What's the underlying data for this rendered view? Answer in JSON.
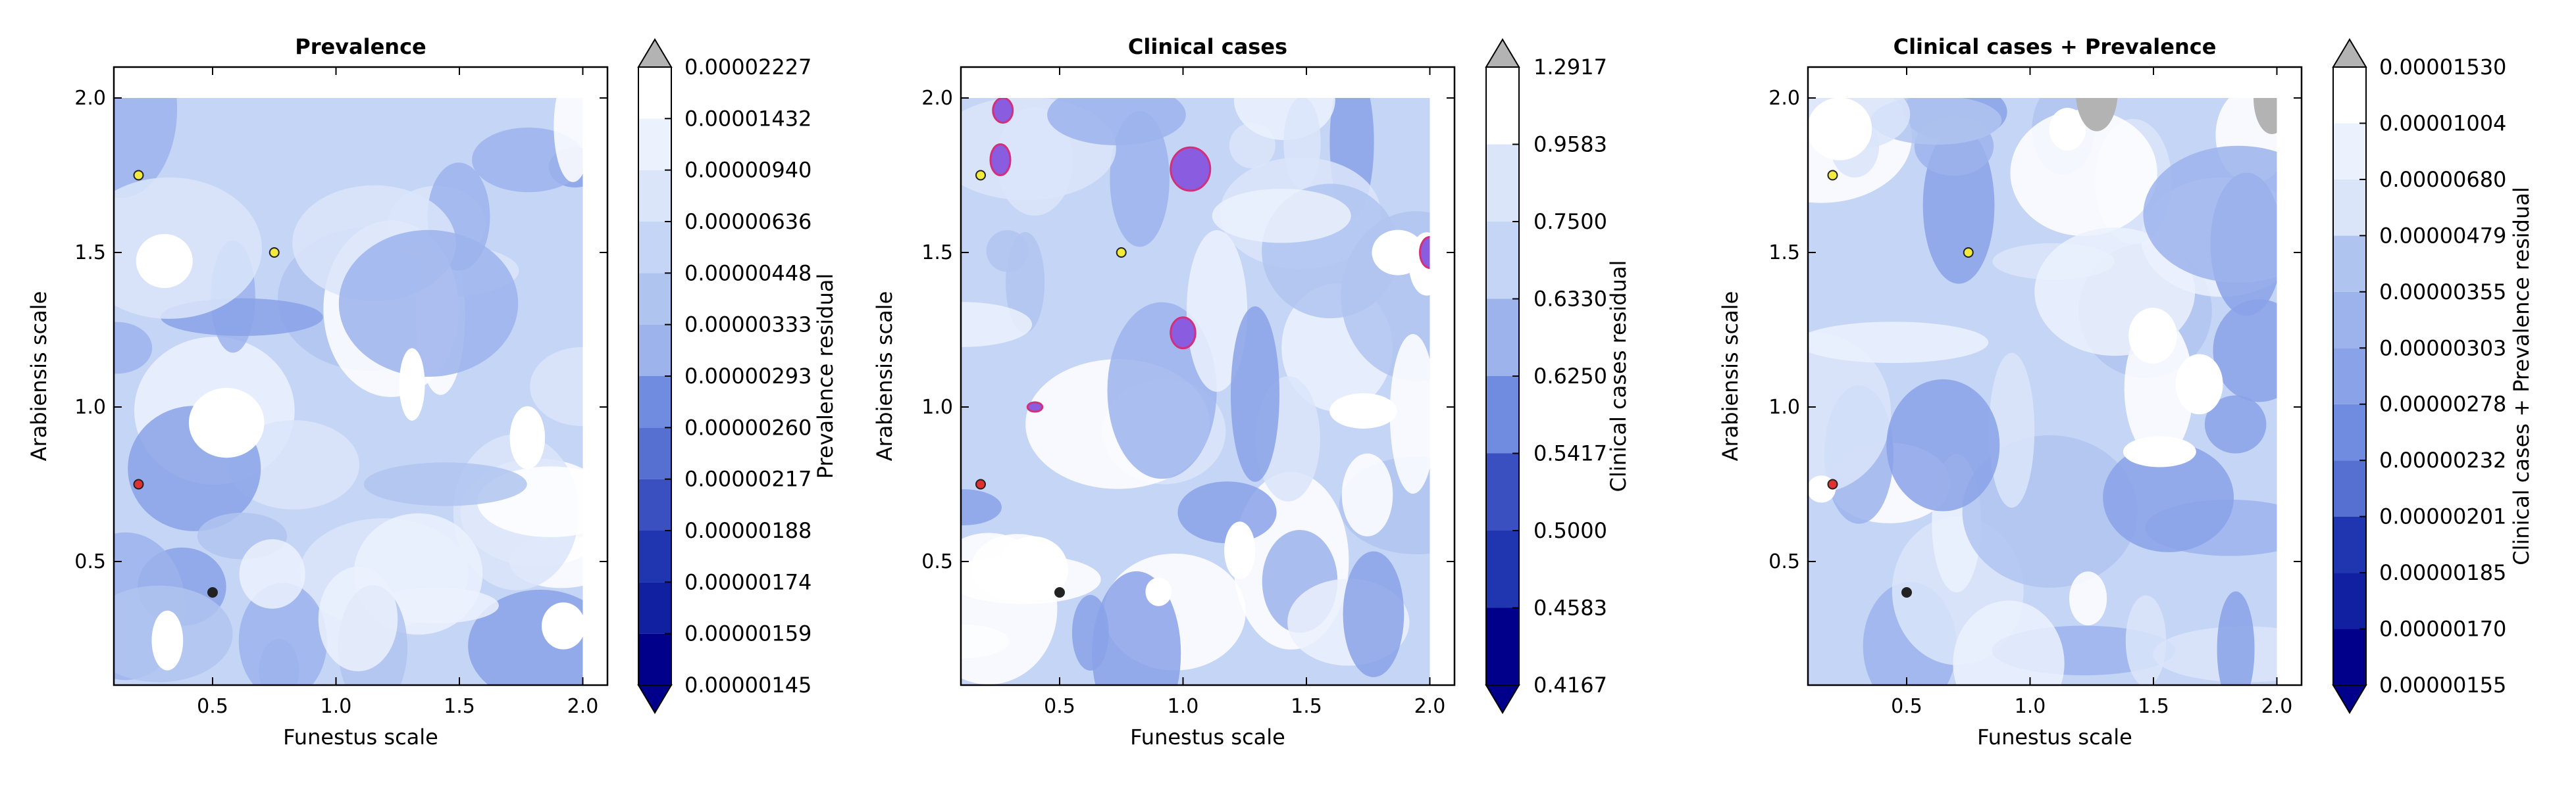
{
  "colors": {
    "background": "#ffffff",
    "over": "#b3b3b3",
    "under": "#00008b",
    "levels": [
      "#00008b",
      "#1020a0",
      "#2035b0",
      "#3a4fc0",
      "#5570d0",
      "#6f8ce0",
      "#8aa2e8",
      "#9cb3ec",
      "#b0c4f0",
      "#c5d5f5",
      "#dbe5fa",
      "#ebf1fd",
      "#ffffff"
    ],
    "point_yellow": "#f2ea3c",
    "point_red": "#e03030",
    "point_black": "#222222",
    "highlight_fill": "#8a5ce0",
    "highlight_edge": "#d2307a"
  },
  "chart_data": [
    {
      "type": "contour",
      "title": "Prevalence",
      "xlabel": "Funestus scale",
      "ylabel": "Arabiensis scale",
      "xlim": [
        0.1,
        2.1
      ],
      "ylim": [
        0.1,
        2.1
      ],
      "xticks": [
        "0.5",
        "1.0",
        "1.5",
        "2.0"
      ],
      "yticks": [
        "0.5",
        "1.0",
        "1.5",
        "2.0"
      ],
      "colorbar_label": "Prevalence residual",
      "colorbar_ticks": [
        "0.00000145",
        "0.00000159",
        "0.00000174",
        "0.00000188",
        "0.00000217",
        "0.00000260",
        "0.00000293",
        "0.00000333",
        "0.00000448",
        "0.00000636",
        "0.00000940",
        "0.00001432",
        "0.00002227"
      ],
      "points": [
        {
          "x": 0.2,
          "y": 1.75,
          "color": "yellow"
        },
        {
          "x": 0.75,
          "y": 1.5,
          "color": "yellow"
        },
        {
          "x": 0.2,
          "y": 0.75,
          "color": "red"
        },
        {
          "x": 0.5,
          "y": 0.4,
          "color": "black"
        }
      ],
      "highlights": [],
      "seed": 1
    },
    {
      "type": "contour",
      "title": "Clinical cases",
      "xlabel": "Funestus scale",
      "ylabel": "Arabiensis scale",
      "xlim": [
        0.1,
        2.1
      ],
      "ylim": [
        0.1,
        2.1
      ],
      "xticks": [
        "0.5",
        "1.0",
        "1.5",
        "2.0"
      ],
      "yticks": [
        "0.5",
        "1.0",
        "1.5",
        "2.0"
      ],
      "colorbar_label": "Clinical cases residual",
      "colorbar_ticks": [
        "0.4167",
        "0.4583",
        "0.5000",
        "0.5417",
        "0.6250",
        "0.6330",
        "0.7500",
        "0.9583",
        "1.2917"
      ],
      "points": [
        {
          "x": 0.18,
          "y": 1.75,
          "color": "yellow"
        },
        {
          "x": 0.75,
          "y": 1.5,
          "color": "yellow"
        },
        {
          "x": 0.18,
          "y": 0.75,
          "color": "red"
        },
        {
          "x": 0.5,
          "y": 0.4,
          "color": "black"
        }
      ],
      "highlights": [
        {
          "x": 1.03,
          "y": 1.77,
          "rx": 0.08,
          "ry": 0.07
        },
        {
          "x": 1.0,
          "y": 1.24,
          "rx": 0.05,
          "ry": 0.05
        },
        {
          "x": 0.26,
          "y": 1.8,
          "rx": 0.04,
          "ry": 0.05
        },
        {
          "x": 0.27,
          "y": 1.96,
          "rx": 0.04,
          "ry": 0.04
        },
        {
          "x": 0.4,
          "y": 1.0,
          "rx": 0.03,
          "ry": 0.015
        },
        {
          "x": 2.0,
          "y": 1.5,
          "rx": 0.04,
          "ry": 0.05
        }
      ],
      "seed": 2
    },
    {
      "type": "contour",
      "title": "Clinical cases + Prevalence",
      "xlabel": "Funestus scale",
      "ylabel": "Arabiensis scale",
      "xlim": [
        0.1,
        2.1
      ],
      "ylim": [
        0.1,
        2.1
      ],
      "xticks": [
        "0.5",
        "1.0",
        "1.5",
        "2.0"
      ],
      "yticks": [
        "0.5",
        "1.0",
        "1.5",
        "2.0"
      ],
      "colorbar_label": "Clinical cases + Prevalence residual",
      "colorbar_ticks": [
        "0.00000155",
        "0.00000170",
        "0.00000185",
        "0.00000201",
        "0.00000232",
        "0.00000278",
        "0.00000303",
        "0.00000355",
        "0.00000479",
        "0.00000680",
        "0.00001004",
        "0.00001530"
      ],
      "points": [
        {
          "x": 0.2,
          "y": 1.75,
          "color": "yellow"
        },
        {
          "x": 0.75,
          "y": 1.5,
          "color": "yellow"
        },
        {
          "x": 0.2,
          "y": 0.75,
          "color": "red"
        },
        {
          "x": 0.5,
          "y": 0.4,
          "color": "black"
        }
      ],
      "highlights": [],
      "seed": 3
    }
  ]
}
